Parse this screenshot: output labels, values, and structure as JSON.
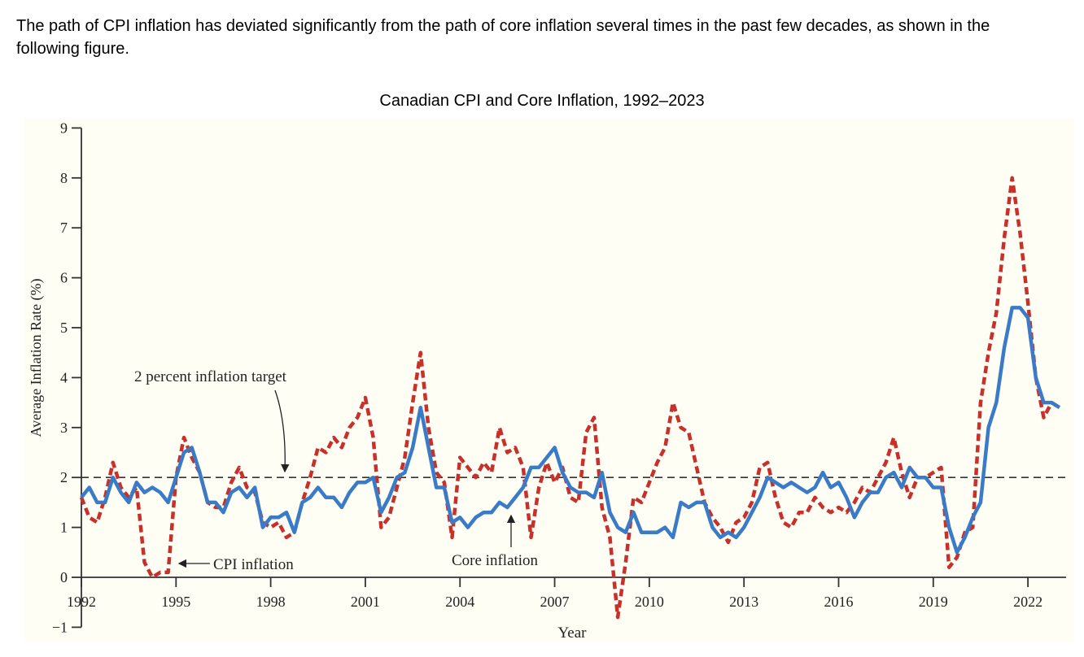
{
  "intro_text": "The path of CPI inflation has deviated significantly from the path of core inflation several times in the past few decades, as shown in the following figure.",
  "chart_data": {
    "type": "line",
    "title": "Canadian CPI and Core Inflation, 1992–2023",
    "xlabel": "Year",
    "ylabel": "Average Inflation Rate (%)",
    "xlim": [
      1992,
      2023.2
    ],
    "ylim": [
      -1,
      9
    ],
    "x_ticks": [
      1992,
      1995,
      1998,
      2001,
      2004,
      2007,
      2010,
      2013,
      2016,
      2019,
      2022
    ],
    "y_ticks": [
      -1,
      0,
      1,
      2,
      3,
      4,
      5,
      6,
      7,
      8,
      9
    ],
    "grid": false,
    "reference_line": {
      "y": 2,
      "label": "2 percent inflation target",
      "style": "dashed",
      "color": "#333333"
    },
    "annotations": [
      {
        "text": "CPI inflation",
        "series": "cpi"
      },
      {
        "text": "Core inflation",
        "series": "core"
      }
    ],
    "series": [
      {
        "key": "cpi",
        "name": "CPI inflation",
        "color": "#c8312b",
        "style": "dashed"
      },
      {
        "key": "core",
        "name": "Core inflation",
        "color": "#3a7bc8",
        "style": "solid"
      }
    ],
    "x": [
      1992.0,
      1992.25,
      1992.5,
      1992.75,
      1993.0,
      1993.25,
      1993.5,
      1993.75,
      1994.0,
      1994.25,
      1994.5,
      1994.75,
      1995.0,
      1995.25,
      1995.5,
      1995.75,
      1996.0,
      1996.25,
      1996.5,
      1996.75,
      1997.0,
      1997.25,
      1997.5,
      1997.75,
      1998.0,
      1998.25,
      1998.5,
      1998.75,
      1999.0,
      1999.25,
      1999.5,
      1999.75,
      2000.0,
      2000.25,
      2000.5,
      2000.75,
      2001.0,
      2001.25,
      2001.5,
      2001.75,
      2002.0,
      2002.25,
      2002.5,
      2002.75,
      2003.0,
      2003.25,
      2003.5,
      2003.75,
      2004.0,
      2004.25,
      2004.5,
      2004.75,
      2005.0,
      2005.25,
      2005.5,
      2005.75,
      2006.0,
      2006.25,
      2006.5,
      2006.75,
      2007.0,
      2007.25,
      2007.5,
      2007.75,
      2008.0,
      2008.25,
      2008.5,
      2008.75,
      2009.0,
      2009.25,
      2009.5,
      2009.75,
      2010.0,
      2010.25,
      2010.5,
      2010.75,
      2011.0,
      2011.25,
      2011.5,
      2011.75,
      2012.0,
      2012.25,
      2012.5,
      2012.75,
      2013.0,
      2013.25,
      2013.5,
      2013.75,
      2014.0,
      2014.25,
      2014.5,
      2014.75,
      2015.0,
      2015.25,
      2015.5,
      2015.75,
      2016.0,
      2016.25,
      2016.5,
      2016.75,
      2017.0,
      2017.25,
      2017.5,
      2017.75,
      2018.0,
      2018.25,
      2018.5,
      2018.75,
      2019.0,
      2019.25,
      2019.5,
      2019.75,
      2020.0,
      2020.25,
      2020.5,
      2020.75,
      2021.0,
      2021.25,
      2021.5,
      2021.75,
      2022.0,
      2022.25,
      2022.5,
      2022.75,
      2023.0
    ],
    "cpi": [
      1.6,
      1.2,
      1.1,
      1.6,
      2.3,
      1.8,
      1.6,
      1.8,
      0.3,
      0.0,
      0.1,
      0.1,
      2.0,
      2.8,
      2.4,
      2.1,
      1.5,
      1.4,
      1.4,
      1.9,
      2.2,
      1.8,
      1.7,
      1.1,
      1.0,
      1.1,
      0.8,
      0.9,
      1.5,
      2.0,
      2.6,
      2.5,
      2.8,
      2.6,
      3.0,
      3.2,
      3.6,
      2.8,
      1.0,
      1.2,
      1.8,
      2.4,
      3.5,
      4.5,
      3.0,
      2.1,
      1.9,
      0.8,
      2.4,
      2.2,
      2.0,
      2.3,
      2.1,
      3.0,
      2.5,
      2.6,
      2.2,
      0.8,
      1.8,
      2.3,
      1.9,
      2.2,
      1.6,
      1.5,
      2.9,
      3.2,
      1.4,
      0.8,
      -0.8,
      0.3,
      1.6,
      1.5,
      1.9,
      2.3,
      2.6,
      3.5,
      3.0,
      2.9,
      2.2,
      1.5,
      1.2,
      1.0,
      0.7,
      1.1,
      1.2,
      1.5,
      2.2,
      2.3,
      1.6,
      1.1,
      1.0,
      1.3,
      1.3,
      1.6,
      1.4,
      1.3,
      1.4,
      1.3,
      1.5,
      1.8,
      1.7,
      2.0,
      2.3,
      2.8,
      2.1,
      1.6,
      2.0,
      2.0,
      2.1,
      2.2,
      0.2,
      0.4,
      0.9,
      1.0,
      3.5,
      4.5,
      5.3,
      6.8,
      8.0,
      6.9,
      5.5,
      4.0,
      3.2,
      3.5,
      3.4
    ],
    "core": [
      1.6,
      1.8,
      1.5,
      1.5,
      2.0,
      1.7,
      1.5,
      1.9,
      1.7,
      1.8,
      1.7,
      1.5,
      2.0,
      2.5,
      2.6,
      2.1,
      1.5,
      1.5,
      1.3,
      1.7,
      1.8,
      1.6,
      1.8,
      1.0,
      1.2,
      1.2,
      1.3,
      0.9,
      1.5,
      1.6,
      1.8,
      1.6,
      1.6,
      1.4,
      1.7,
      1.9,
      1.9,
      2.0,
      1.3,
      1.6,
      2.0,
      2.1,
      2.6,
      3.4,
      2.6,
      1.8,
      1.8,
      1.1,
      1.2,
      1.0,
      1.2,
      1.3,
      1.3,
      1.5,
      1.4,
      1.6,
      1.8,
      2.2,
      2.2,
      2.4,
      2.6,
      2.1,
      1.8,
      1.7,
      1.7,
      1.6,
      2.1,
      1.3,
      1.0,
      0.9,
      1.3,
      0.9,
      0.9,
      0.9,
      1.0,
      0.8,
      1.5,
      1.4,
      1.5,
      1.5,
      1.0,
      0.8,
      0.9,
      0.8,
      1.0,
      1.3,
      1.6,
      2.0,
      1.9,
      1.8,
      1.9,
      1.8,
      1.7,
      1.8,
      2.1,
      1.8,
      1.9,
      1.6,
      1.2,
      1.5,
      1.7,
      1.7,
      2.0,
      2.1,
      1.8,
      2.2,
      2.0,
      2.0,
      1.8,
      1.8,
      1.0,
      0.5,
      0.8,
      1.2,
      1.5,
      3.0,
      3.5,
      4.6,
      5.4,
      5.4,
      5.2,
      4.0,
      3.5,
      3.5,
      3.4
    ]
  }
}
